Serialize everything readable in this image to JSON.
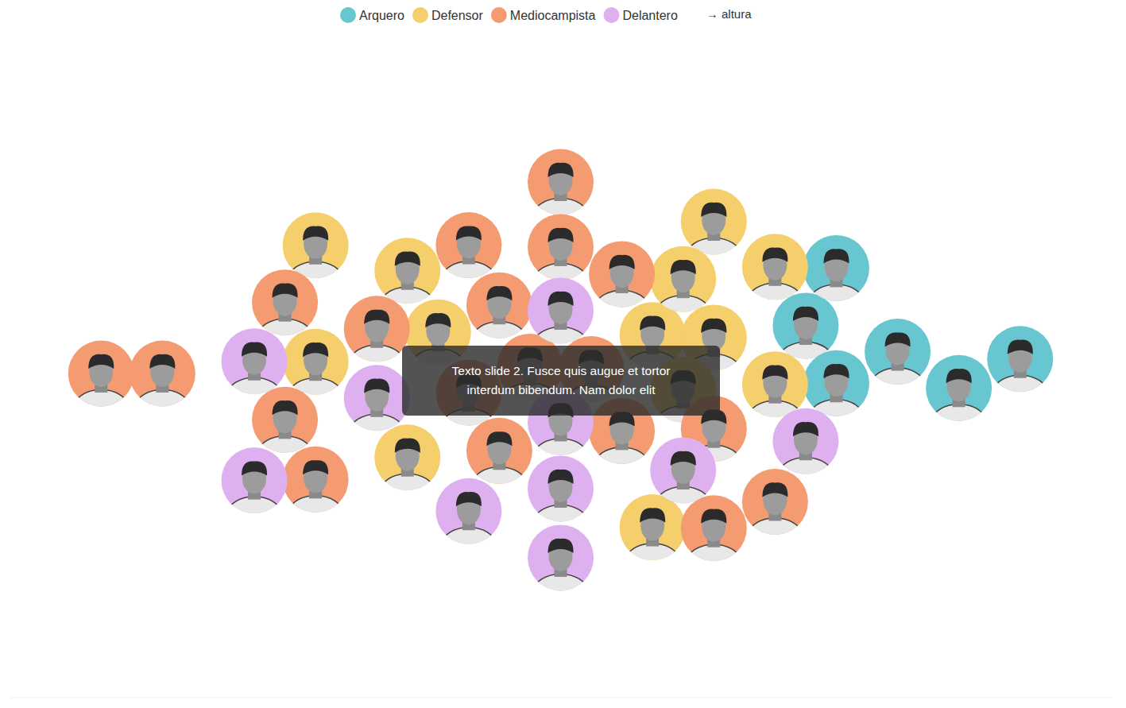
{
  "chart_data": {
    "type": "beeswarm",
    "x_label": "→ altura",
    "annotation": "Texto slide 2. Fusce quis augue et tortor interdum bibendum. Nam dolor elit",
    "xlim": [
      162,
      198
    ],
    "tick_labels": false,
    "grid": false,
    "legend": "top",
    "series": [
      {
        "name": "Arquero",
        "color": "#67c6cf",
        "values": [
          188,
          191,
          189,
          195,
          193,
          189
        ]
      },
      {
        "name": "Defensor",
        "color": "#f5cf6b",
        "values": [
          185,
          183,
          172,
          176,
          185,
          172,
          175,
          184,
          187,
          175,
          183,
          184,
          187
        ]
      },
      {
        "name": "Mediocampista",
        "color": "#f59b72",
        "values": [
          182,
          185,
          187,
          171,
          174,
          178,
          180,
          165,
          167,
          180,
          177,
          171,
          179,
          177,
          181,
          172,
          178,
          182,
          185
        ]
      },
      {
        "name": "Delantero",
        "color": "#deb0f0",
        "values": [
          180,
          180,
          177,
          170,
          170,
          174,
          188,
          180,
          180,
          184
        ]
      }
    ]
  }
}
